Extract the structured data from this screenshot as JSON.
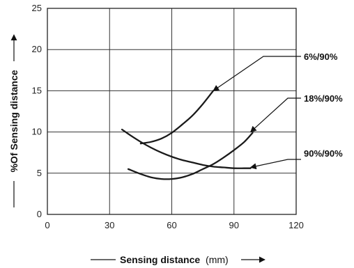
{
  "chart_data": {
    "type": "line",
    "xlabel": {
      "bold": "Sensing distance",
      "unit": "(mm)"
    },
    "ylabel": "%Of Sensing distance",
    "xlim": [
      0,
      120
    ],
    "ylim": [
      0,
      25
    ],
    "xticks": [
      "0",
      "30",
      "60",
      "90",
      "120"
    ],
    "yticks": [
      "0",
      "5",
      "10",
      "15",
      "20",
      "25"
    ],
    "grid": true,
    "series": [
      {
        "name": "6%/90%",
        "x": [
          45,
          50,
          55,
          60,
          65,
          70,
          75,
          80
        ],
        "y": [
          8.6,
          8.8,
          9.2,
          9.9,
          10.9,
          12.0,
          13.4,
          15.0
        ]
      },
      {
        "name": "18%/90%",
        "x": [
          39,
          45,
          50,
          55,
          60,
          65,
          70,
          75,
          80,
          85,
          90,
          95,
          99
        ],
        "y": [
          5.5,
          4.9,
          4.5,
          4.3,
          4.3,
          4.5,
          4.9,
          5.5,
          6.1,
          6.9,
          7.8,
          8.8,
          9.9
        ]
      },
      {
        "name": "90%/90%",
        "x": [
          36,
          40,
          45,
          50,
          55,
          60,
          65,
          70,
          75,
          80,
          85,
          90,
          95,
          98
        ],
        "y": [
          10.3,
          9.6,
          8.8,
          8.1,
          7.5,
          7.0,
          6.6,
          6.3,
          6.0,
          5.8,
          5.7,
          5.6,
          5.6,
          5.6
        ]
      }
    ],
    "annotations": [
      {
        "label": "6%/90%",
        "x": 80,
        "y": 15.0
      },
      {
        "label": "18%/90%",
        "x": 98,
        "y": 10.0
      },
      {
        "label": "90%/90%",
        "x": 98,
        "y": 5.7
      }
    ]
  }
}
